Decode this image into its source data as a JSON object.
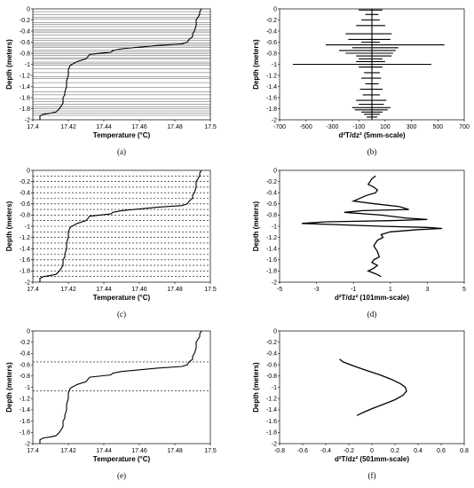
{
  "chart_data": [
    {
      "id": "a",
      "type": "line",
      "panel_label": "(a)",
      "xlabel": "Temperature (°C)",
      "ylabel": "Depth (meters)",
      "xlim": [
        17.4,
        17.5
      ],
      "ylim": [
        -2,
        0
      ],
      "xticks": [
        "17.4",
        "17.42",
        "17.44",
        "17.46",
        "17.48",
        "17.5"
      ],
      "yticks": [
        "0",
        "-0.2",
        "-0.4",
        "-0.6",
        "-0.8",
        "-1",
        "-1.2",
        "-1.4",
        "-1.6",
        "-1.8",
        "-2"
      ],
      "hlines": [
        -0.05,
        -0.1,
        -0.15,
        -0.18,
        -0.25,
        -0.28,
        -0.32,
        -0.37,
        -0.4,
        -0.43,
        -0.47,
        -0.53,
        -0.57,
        -0.61,
        -0.64,
        -0.67,
        -0.7,
        -0.74,
        -0.78,
        -0.81,
        -0.84,
        -0.88,
        -0.9,
        -0.96,
        -0.99,
        -1.02,
        -1.08,
        -1.15,
        -1.22,
        -1.26,
        -1.33,
        -1.42,
        -1.5,
        -1.55,
        -1.62,
        -1.67,
        -1.72,
        -1.77,
        -1.8,
        -1.84,
        -1.88,
        -1.92
      ],
      "hline_style": "solid",
      "series": [
        {
          "x": [
            17.495,
            17.494,
            17.494,
            17.493,
            17.492,
            17.492,
            17.491,
            17.49,
            17.49,
            17.488,
            17.487,
            17.484,
            17.47,
            17.45,
            17.445,
            17.444,
            17.432,
            17.43,
            17.425,
            17.422,
            17.421,
            17.42,
            17.42,
            17.419,
            17.419,
            17.418,
            17.418,
            17.417,
            17.417,
            17.417,
            17.416,
            17.415,
            17.414,
            17.413,
            17.41,
            17.406,
            17.404,
            17.404
          ],
          "y": [
            0,
            -0.05,
            -0.1,
            -0.15,
            -0.2,
            -0.3,
            -0.4,
            -0.45,
            -0.5,
            -0.55,
            -0.6,
            -0.63,
            -0.66,
            -0.72,
            -0.75,
            -0.78,
            -0.82,
            -0.9,
            -0.95,
            -1.0,
            -1.02,
            -1.1,
            -1.2,
            -1.3,
            -1.4,
            -1.5,
            -1.55,
            -1.6,
            -1.65,
            -1.7,
            -1.75,
            -1.8,
            -1.83,
            -1.86,
            -1.88,
            -1.9,
            -1.93,
            -2.0
          ]
        }
      ]
    },
    {
      "id": "b",
      "type": "line",
      "panel_label": "(b)",
      "xlabel": "d²T/dz² (5mm-scale)",
      "ylabel": "Depth (meters)",
      "xlim": [
        -700,
        700
      ],
      "ylim": [
        -2,
        0
      ],
      "xticks": [
        "-700",
        "-500",
        "-300",
        "-100",
        "100",
        "300",
        "500",
        "700"
      ],
      "yticks": [
        "0",
        "-0.2",
        "-0.4",
        "-0.6",
        "-0.8",
        "-1",
        "-1.2",
        "-1.4",
        "-1.6",
        "-1.8",
        "-2"
      ],
      "series": [
        {
          "x": [
            0,
            0,
            -100,
            80,
            0,
            0,
            -50,
            50,
            0,
            0,
            -80,
            60,
            0,
            0,
            -120,
            100,
            0,
            0,
            -200,
            150,
            0,
            0,
            -180,
            140,
            0,
            0,
            -80,
            60,
            0,
            0,
            -350,
            550,
            0,
            0,
            -150,
            200,
            0,
            0,
            -250,
            180,
            0,
            0,
            -200,
            160,
            0,
            0,
            -120,
            150,
            0,
            0,
            -100,
            80,
            0,
            0,
            -120,
            100,
            0,
            0,
            -600,
            450,
            0,
            0,
            -100,
            80,
            0,
            0,
            -60,
            60,
            0,
            0,
            -80,
            70,
            0,
            0,
            -50,
            50,
            0,
            0,
            -90,
            80,
            0,
            0,
            -70,
            60,
            0,
            0,
            -120,
            110,
            0,
            0,
            -100,
            90,
            0,
            0,
            -150,
            140,
            0,
            0,
            -130,
            120,
            0,
            0,
            -80,
            80,
            0,
            0,
            -60,
            60,
            0,
            0,
            -40,
            40,
            0,
            0
          ],
          "y": [
            0,
            -0.02,
            -0.02,
            -0.02,
            -0.02,
            -0.1,
            -0.1,
            -0.1,
            -0.1,
            -0.2,
            -0.2,
            -0.2,
            -0.2,
            -0.3,
            -0.3,
            -0.3,
            -0.3,
            -0.45,
            -0.45,
            -0.45,
            -0.45,
            -0.55,
            -0.55,
            -0.55,
            -0.55,
            -0.6,
            -0.6,
            -0.6,
            -0.6,
            -0.65,
            -0.65,
            -0.65,
            -0.65,
            -0.7,
            -0.7,
            -0.7,
            -0.7,
            -0.75,
            -0.75,
            -0.75,
            -0.75,
            -0.8,
            -0.8,
            -0.8,
            -0.8,
            -0.85,
            -0.85,
            -0.85,
            -0.85,
            -0.9,
            -0.9,
            -0.9,
            -0.9,
            -0.95,
            -0.95,
            -0.95,
            -0.95,
            -1.0,
            -1.0,
            -1.0,
            -1.0,
            -1.05,
            -1.05,
            -1.05,
            -1.05,
            -1.15,
            -1.15,
            -1.15,
            -1.15,
            -1.25,
            -1.25,
            -1.25,
            -1.25,
            -1.35,
            -1.35,
            -1.35,
            -1.35,
            -1.45,
            -1.45,
            -1.45,
            -1.45,
            -1.55,
            -1.55,
            -1.55,
            -1.55,
            -1.65,
            -1.65,
            -1.65,
            -1.65,
            -1.72,
            -1.72,
            -1.72,
            -1.72,
            -1.78,
            -1.78,
            -1.78,
            -1.78,
            -1.82,
            -1.82,
            -1.82,
            -1.82,
            -1.86,
            -1.86,
            -1.86,
            -1.86,
            -1.9,
            -1.9,
            -1.9,
            -1.9,
            -1.95,
            -1.95,
            -1.95,
            -1.95,
            -2.0
          ]
        }
      ]
    },
    {
      "id": "c",
      "type": "line",
      "panel_label": "(c)",
      "xlabel": "Temperature (°C)",
      "ylabel": "Depth (meters)",
      "xlim": [
        17.4,
        17.5
      ],
      "ylim": [
        -2,
        0
      ],
      "xticks": [
        "17.4",
        "17.42",
        "17.44",
        "17.46",
        "17.48",
        "17.5"
      ],
      "yticks": [
        "0",
        "-0.2",
        "-0.4",
        "-0.6",
        "-0.8",
        "-1",
        "-1.2",
        "-1.4",
        "-1.6",
        "-1.8",
        "-2"
      ],
      "hlines": [
        -0.1,
        -0.2,
        -0.3,
        -0.4,
        -0.5,
        -0.6,
        -0.7,
        -0.8,
        -0.9,
        -1.0,
        -1.1,
        -1.2,
        -1.3,
        -1.4,
        -1.5,
        -1.6,
        -1.7,
        -1.8,
        -1.9
      ],
      "hline_style": "dashed",
      "series": [
        {
          "x": [
            17.495,
            17.494,
            17.494,
            17.493,
            17.492,
            17.492,
            17.491,
            17.49,
            17.49,
            17.488,
            17.487,
            17.484,
            17.47,
            17.45,
            17.445,
            17.444,
            17.432,
            17.43,
            17.425,
            17.422,
            17.421,
            17.42,
            17.42,
            17.419,
            17.419,
            17.418,
            17.418,
            17.417,
            17.417,
            17.417,
            17.416,
            17.415,
            17.414,
            17.413,
            17.41,
            17.406,
            17.404,
            17.404
          ],
          "y": [
            0,
            -0.05,
            -0.1,
            -0.15,
            -0.2,
            -0.3,
            -0.4,
            -0.45,
            -0.5,
            -0.55,
            -0.6,
            -0.63,
            -0.66,
            -0.72,
            -0.75,
            -0.78,
            -0.82,
            -0.9,
            -0.95,
            -1.0,
            -1.02,
            -1.1,
            -1.2,
            -1.3,
            -1.4,
            -1.5,
            -1.55,
            -1.6,
            -1.65,
            -1.7,
            -1.75,
            -1.8,
            -1.83,
            -1.86,
            -1.88,
            -1.9,
            -1.93,
            -2.0
          ]
        }
      ]
    },
    {
      "id": "d",
      "type": "line",
      "panel_label": "(d)",
      "xlabel": "d²T/dz² (101mm-scale)",
      "ylabel": "Depth (meters)",
      "xlim": [
        -5,
        5
      ],
      "ylim": [
        -2,
        0
      ],
      "xticks": [
        "-5",
        "-3",
        "-1",
        "1",
        "3",
        "5"
      ],
      "yticks": [
        "0",
        "-0.2",
        "-0.4",
        "-0.6",
        "-0.8",
        "-1",
        "-1.2",
        "-1.4",
        "-1.6",
        "-1.8",
        "-2"
      ],
      "series": [
        {
          "x": [
            0.2,
            0.0,
            -0.2,
            0.1,
            0.3,
            0.2,
            -0.3,
            -1.0,
            0.2,
            1.5,
            2.0,
            -0.5,
            -1.5,
            0.5,
            1.8,
            3.0,
            1.0,
            -2.5,
            -3.8,
            -2.0,
            0.5,
            3.0,
            3.8,
            2.5,
            1.0,
            0.5,
            0.6,
            0.3,
            0.1,
            0.3,
            0.4,
            0.1,
            0.0,
            0.3,
            0.1,
            -0.2,
            0.2,
            0.5
          ],
          "y": [
            -0.1,
            -0.15,
            -0.25,
            -0.3,
            -0.35,
            -0.4,
            -0.45,
            -0.55,
            -0.6,
            -0.65,
            -0.7,
            -0.72,
            -0.75,
            -0.8,
            -0.85,
            -0.88,
            -0.9,
            -0.92,
            -0.95,
            -0.97,
            -1.0,
            -1.02,
            -1.04,
            -1.06,
            -1.1,
            -1.15,
            -1.2,
            -1.25,
            -1.35,
            -1.45,
            -1.55,
            -1.6,
            -1.65,
            -1.7,
            -1.75,
            -1.8,
            -1.85,
            -1.9
          ]
        }
      ]
    },
    {
      "id": "e",
      "type": "line",
      "panel_label": "(e)",
      "xlabel": "Temperature (°C)",
      "ylabel": "Depth (meters)",
      "xlim": [
        17.4,
        17.5
      ],
      "ylim": [
        -2,
        0
      ],
      "xticks": [
        "17.4",
        "17.42",
        "17.44",
        "17.46",
        "17.48",
        "17.5"
      ],
      "yticks": [
        "0",
        "-0.2",
        "-0.4",
        "-0.6",
        "-0.8",
        "-1",
        "-1.2",
        "-1.4",
        "-1.6",
        "-1.8",
        "-2"
      ],
      "hlines": [
        -0.55,
        -1.06
      ],
      "hline_style": "dashed",
      "series": [
        {
          "x": [
            17.495,
            17.494,
            17.494,
            17.493,
            17.492,
            17.492,
            17.491,
            17.49,
            17.49,
            17.488,
            17.487,
            17.484,
            17.47,
            17.45,
            17.445,
            17.444,
            17.432,
            17.43,
            17.425,
            17.422,
            17.421,
            17.42,
            17.42,
            17.419,
            17.419,
            17.418,
            17.418,
            17.417,
            17.417,
            17.417,
            17.416,
            17.415,
            17.414,
            17.413,
            17.41,
            17.406,
            17.404,
            17.404
          ],
          "y": [
            0,
            -0.05,
            -0.1,
            -0.15,
            -0.2,
            -0.3,
            -0.4,
            -0.45,
            -0.5,
            -0.55,
            -0.6,
            -0.63,
            -0.66,
            -0.72,
            -0.75,
            -0.78,
            -0.82,
            -0.9,
            -0.95,
            -1.0,
            -1.02,
            -1.1,
            -1.2,
            -1.3,
            -1.4,
            -1.5,
            -1.55,
            -1.6,
            -1.65,
            -1.7,
            -1.75,
            -1.8,
            -1.83,
            -1.86,
            -1.88,
            -1.9,
            -1.93,
            -2.0
          ]
        }
      ]
    },
    {
      "id": "f",
      "type": "line",
      "panel_label": "(f)",
      "xlabel": "d²T/dz² (501mm-scale)",
      "ylabel": "Depth (meters)",
      "xlim": [
        -0.8,
        0.8
      ],
      "ylim": [
        -2,
        0
      ],
      "xticks": [
        "-0.8",
        "-0.6",
        "-0.4",
        "-0.2",
        "0",
        "0.2",
        "0.4",
        "0.6",
        "0.8"
      ],
      "yticks": [
        "0",
        "-0.2",
        "-0.4",
        "-0.6",
        "-0.8",
        "-1",
        "-1.2",
        "-1.4",
        "-1.6",
        "-1.8",
        "-2"
      ],
      "series": [
        {
          "x": [
            -0.28,
            -0.25,
            -0.16,
            -0.05,
            0.07,
            0.17,
            0.25,
            0.29,
            0.3,
            0.27,
            0.2,
            0.1,
            0.0,
            -0.08,
            -0.13
          ],
          "y": [
            -0.5,
            -0.55,
            -0.62,
            -0.7,
            -0.78,
            -0.86,
            -0.94,
            -1.0,
            -1.07,
            -1.14,
            -1.22,
            -1.3,
            -1.38,
            -1.45,
            -1.5
          ]
        }
      ]
    }
  ]
}
